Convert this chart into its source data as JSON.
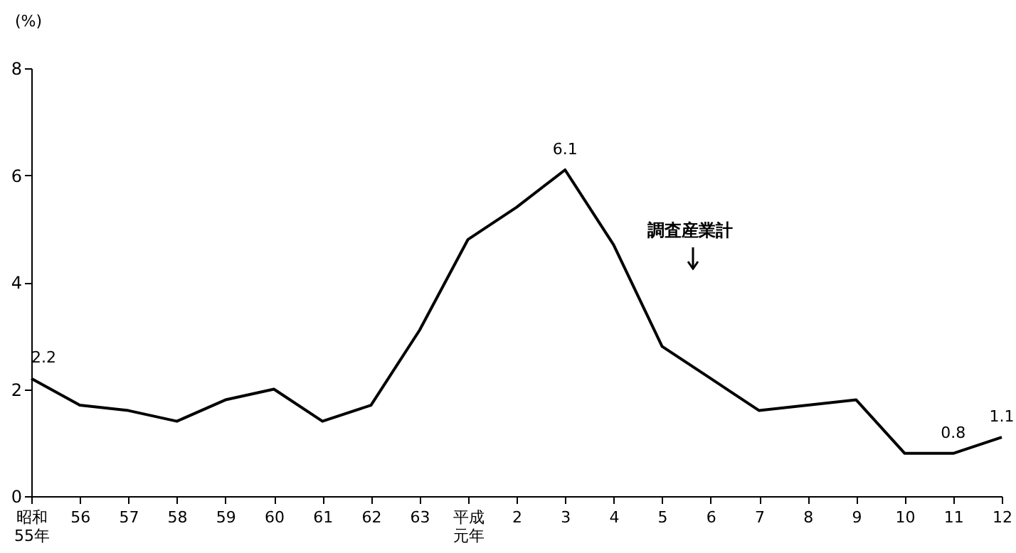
{
  "chart_data": {
    "type": "line",
    "ylabel": "(%)",
    "categories": [
      "昭和55年",
      "56",
      "57",
      "58",
      "59",
      "60",
      "61",
      "62",
      "63",
      "平成元年",
      "2",
      "3",
      "4",
      "5",
      "6",
      "7",
      "8",
      "9",
      "10",
      "11",
      "12"
    ],
    "series": [
      {
        "color": "#000000",
        "values": [
          2.2,
          1.7,
          1.6,
          1.4,
          1.8,
          2.0,
          1.4,
          1.7,
          3.1,
          4.8,
          5.4,
          6.1,
          4.7,
          2.8,
          2.2,
          1.6,
          1.7,
          1.8,
          0.8,
          0.8,
          1.1
        ],
        "value_labels": [
          "2.2",
          null,
          null,
          null,
          null,
          null,
          null,
          null,
          null,
          null,
          null,
          "6.1",
          null,
          null,
          null,
          null,
          null,
          null,
          null,
          "0.8",
          "1.1"
        ]
      }
    ],
    "ylim": [
      0,
      8
    ],
    "yticks": [
      0,
      2,
      4,
      6,
      8
    ],
    "grid": false,
    "marker": "none",
    "line_style": "solid",
    "annotations": [
      "調査産業計"
    ]
  }
}
